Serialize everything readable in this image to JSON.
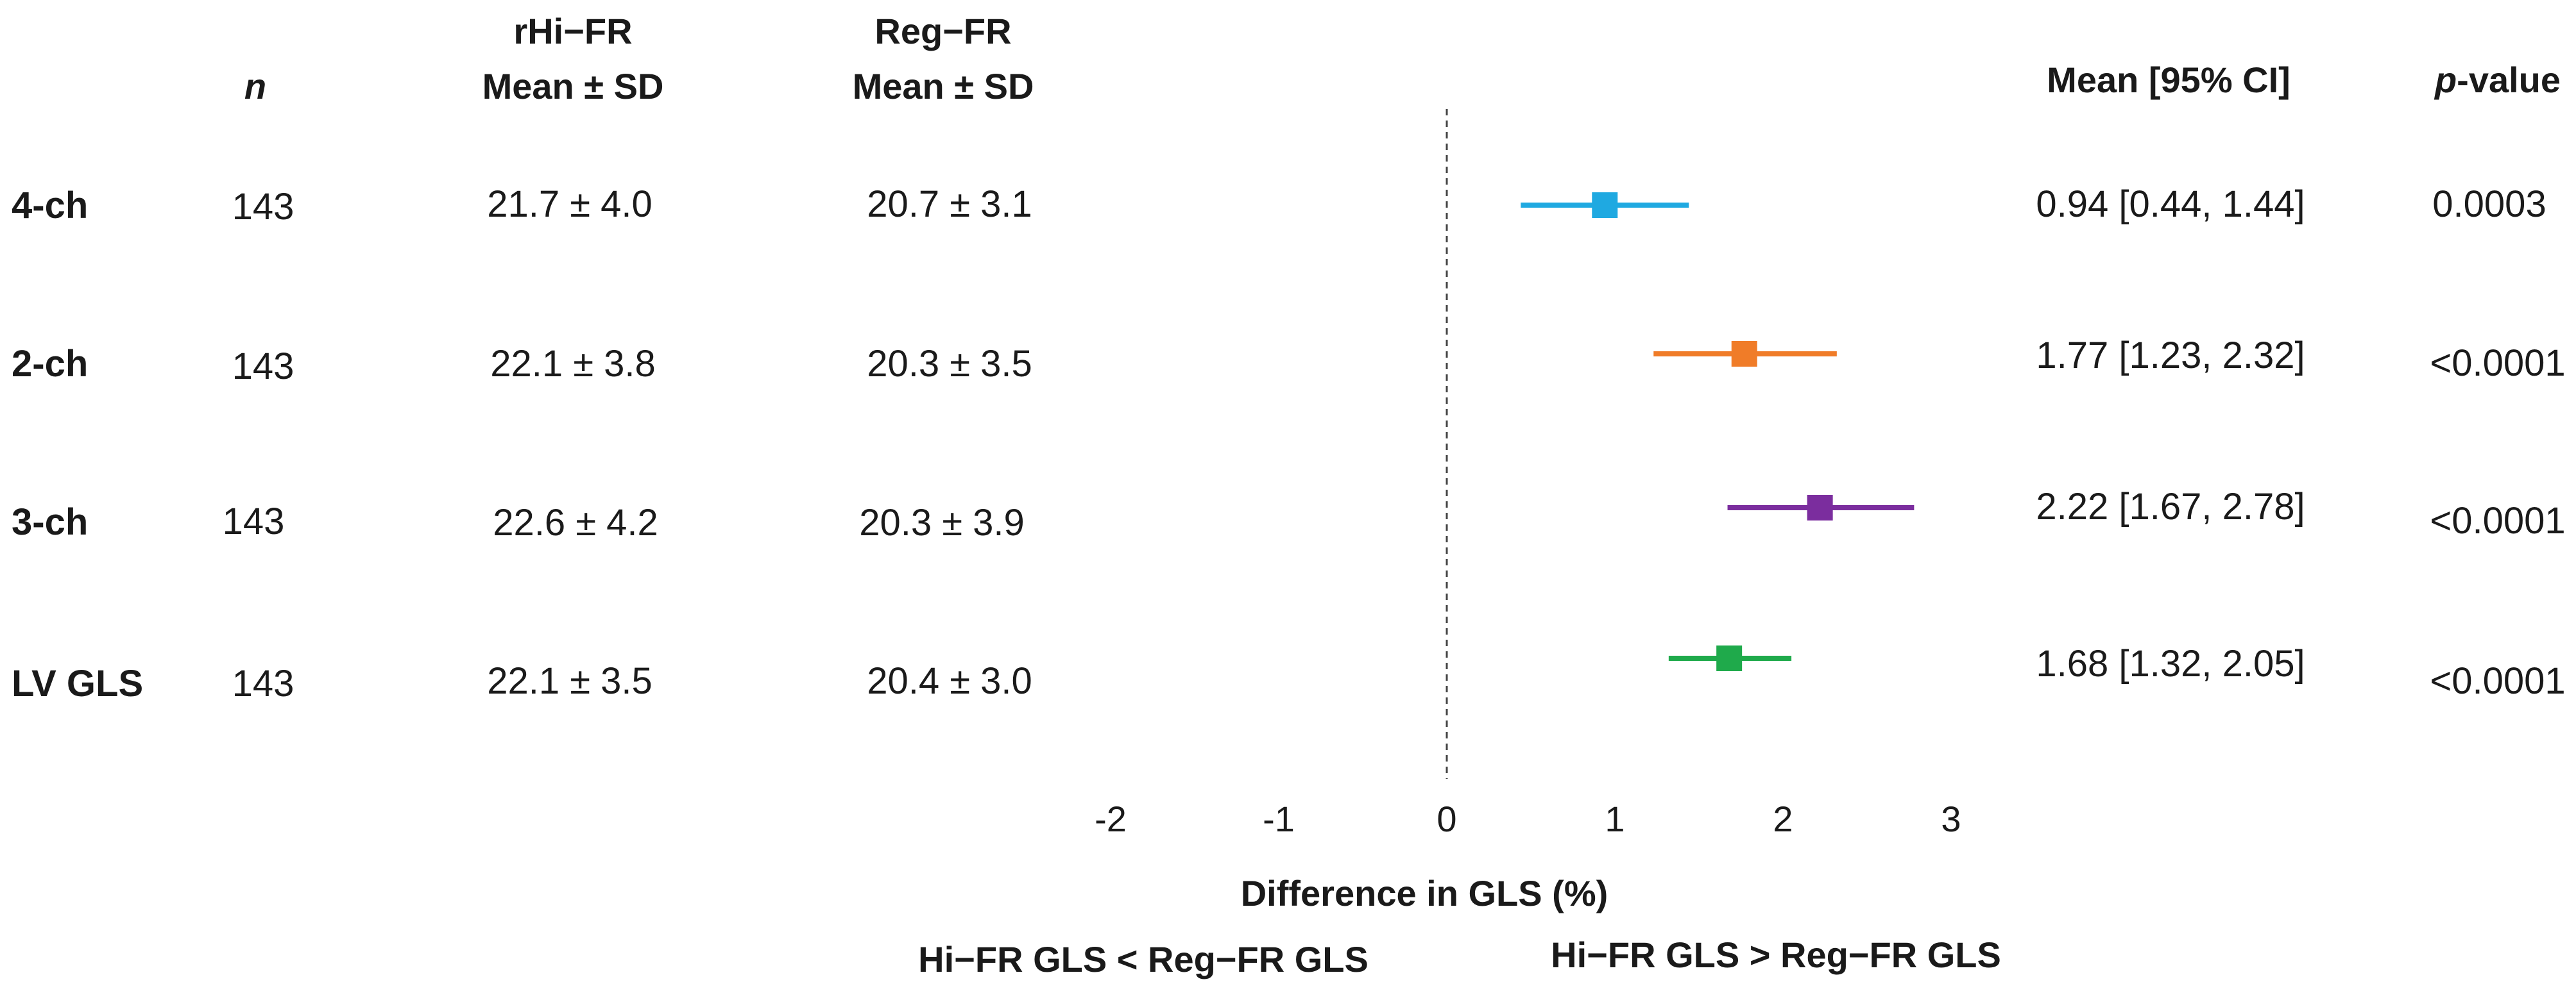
{
  "table": {
    "columns": {
      "n": "n",
      "rhi_line1": "rHi−FR",
      "rhi_line2": "Mean ± SD",
      "reg_line1": "Reg−FR",
      "reg_line2": "Mean ± SD",
      "ci": "Mean [95% CI]",
      "p_italic": "p",
      "p_rest": "-value"
    },
    "rows": [
      {
        "label": "4-ch",
        "n": "143",
        "rhi": "21.7 ± 4.0",
        "reg": "20.7 ± 3.1",
        "ci": "0.94 [0.44, 1.44]",
        "p": "0.0003"
      },
      {
        "label": "2-ch",
        "n": "143",
        "rhi": "22.1 ± 3.8",
        "reg": "20.3 ± 3.5",
        "ci": "1.77 [1.23, 2.32]",
        "p": "<0.0001"
      },
      {
        "label": "3-ch",
        "n": "143",
        "rhi": "22.6 ± 4.2",
        "reg": "20.3 ± 3.9",
        "ci": "2.22 [1.67, 2.78]",
        "p": "<0.0001"
      },
      {
        "label": "LV GLS",
        "n": "143",
        "rhi": "22.1 ± 3.5",
        "reg": "20.4 ± 3.0",
        "ci": "1.68 [1.32, 2.05]",
        "p": "<0.0001"
      }
    ]
  },
  "chart_data": {
    "type": "forest",
    "categories": [
      "4-ch",
      "2-ch",
      "3-ch",
      "LV GLS"
    ],
    "series": [
      {
        "name": "4-ch",
        "mean": 0.94,
        "lower": 0.44,
        "upper": 1.44,
        "color": "#1fa9e1"
      },
      {
        "name": "2-ch",
        "mean": 1.77,
        "lower": 1.23,
        "upper": 2.32,
        "color": "#f07c28"
      },
      {
        "name": "3-ch",
        "mean": 2.22,
        "lower": 1.67,
        "upper": 2.78,
        "color": "#7b2d9e"
      },
      {
        "name": "LV GLS",
        "mean": 1.68,
        "lower": 1.32,
        "upper": 2.05,
        "color": "#1faa4b"
      }
    ],
    "xlim": [
      -2,
      3
    ],
    "xticks": [
      "-2",
      "-1",
      "0",
      "1",
      "2",
      "3"
    ],
    "xticks_values": [
      -2,
      -1,
      0,
      1,
      2,
      3
    ],
    "reference_line": 0,
    "xlabel": "Difference in GLS (%)",
    "left_annotation": "Hi−FR GLS < Reg−FR GLS",
    "right_annotation": "Hi−FR GLS > Reg−FR GLS"
  }
}
